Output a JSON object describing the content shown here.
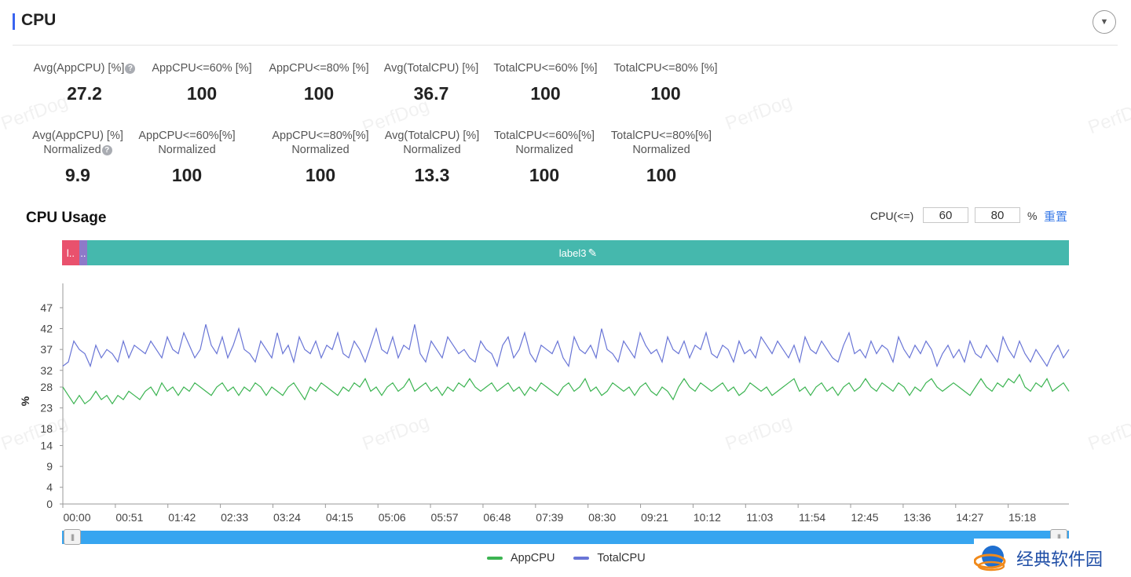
{
  "header": {
    "title": "CPU"
  },
  "stats_row1": [
    {
      "label": "Avg(AppCPU) [%]",
      "value": "27.2",
      "help": true
    },
    {
      "label": "AppCPU<=60% [%]",
      "value": "100"
    },
    {
      "label": "AppCPU<=80% [%]",
      "value": "100"
    },
    {
      "label": "Avg(TotalCPU) [%]",
      "value": "36.7"
    },
    {
      "label": "TotalCPU<=60% [%]",
      "value": "100"
    },
    {
      "label": "TotalCPU<=80% [%]",
      "value": "100"
    }
  ],
  "stats_row2": [
    {
      "label1": "Avg(AppCPU) [%]",
      "label2": "Normalized",
      "value": "9.9",
      "help": true
    },
    {
      "label1": "AppCPU<=60%[%]",
      "label2": "Normalized",
      "value": "100"
    },
    {
      "label1": "AppCPU<=80%[%]",
      "label2": "Normalized",
      "value": "100"
    },
    {
      "label1": "Avg(TotalCPU) [%]",
      "label2": "Normalized",
      "value": "13.3"
    },
    {
      "label1": "TotalCPU<=60%[%]",
      "label2": "Normalized",
      "value": "100"
    },
    {
      "label1": "TotalCPU<=80%[%]",
      "label2": "Normalized",
      "value": "100"
    }
  ],
  "usage": {
    "title": "CPU Usage",
    "threshold_label": "CPU(<=)",
    "threshold_low": "60",
    "threshold_high": "80",
    "unit": "%",
    "reset": "重置"
  },
  "labels": [
    {
      "text": "l..",
      "color": "#e9516d",
      "fraction": 0.017
    },
    {
      "text": "..",
      "color": "#8e79c9",
      "fraction": 0.008
    },
    {
      "text": "label3",
      "color": "#45b8ad",
      "fraction": 0.975
    }
  ],
  "watermark": "PerfDog",
  "brand": "经典软件园",
  "colors": {
    "accent": "#3a64f0",
    "app": "#3cb452",
    "total": "#6975d6",
    "slider": "#37a5f0"
  },
  "chart_data": {
    "type": "line",
    "ylabel": "%",
    "ylim": [
      0,
      50
    ],
    "yticks": [
      "0",
      "4",
      "9",
      "14",
      "18",
      "23",
      "28",
      "32",
      "37",
      "42",
      "47"
    ],
    "xticks": [
      "00:00",
      "00:51",
      "01:42",
      "02:33",
      "03:24",
      "04:15",
      "05:06",
      "05:57",
      "06:48",
      "07:39",
      "08:30",
      "09:21",
      "10:12",
      "11:03",
      "11:54",
      "12:45",
      "13:36",
      "14:27",
      "15:18"
    ],
    "x_interval_s": 51,
    "duration_s": 977,
    "legend_position": "bottom",
    "series": [
      {
        "name": "AppCPU",
        "color": "#3cb452",
        "values": [
          28,
          26,
          24,
          26,
          24,
          25,
          27,
          25,
          26,
          24,
          26,
          25,
          27,
          26,
          25,
          27,
          28,
          26,
          29,
          27,
          28,
          26,
          28,
          27,
          29,
          28,
          27,
          26,
          28,
          29,
          27,
          28,
          26,
          28,
          27,
          29,
          28,
          26,
          28,
          27,
          26,
          28,
          29,
          27,
          25,
          28,
          27,
          29,
          28,
          27,
          26,
          28,
          27,
          29,
          28,
          30,
          27,
          28,
          26,
          28,
          29,
          27,
          28,
          30,
          27,
          28,
          29,
          27,
          28,
          26,
          28,
          27,
          29,
          28,
          30,
          28,
          27,
          28,
          29,
          27,
          28,
          29,
          27,
          28,
          26,
          28,
          27,
          29,
          28,
          27,
          26,
          28,
          29,
          27,
          28,
          30,
          27,
          28,
          26,
          27,
          29,
          28,
          27,
          28,
          26,
          28,
          29,
          27,
          26,
          28,
          27,
          25,
          28,
          30,
          28,
          27,
          29,
          28,
          27,
          28,
          29,
          27,
          28,
          26,
          27,
          29,
          28,
          27,
          28,
          26,
          27,
          28,
          29,
          30,
          27,
          28,
          26,
          28,
          29,
          27,
          28,
          26,
          28,
          29,
          27,
          28,
          30,
          28,
          27,
          29,
          28,
          27,
          29,
          28,
          26,
          28,
          27,
          29,
          30,
          28,
          27,
          28,
          29,
          28,
          27,
          26,
          28,
          30,
          28,
          27,
          29,
          28,
          30,
          29,
          31,
          28,
          27,
          29,
          28,
          30,
          27,
          28,
          29,
          27
        ]
      },
      {
        "name": "TotalCPU",
        "color": "#6975d6",
        "values": [
          33,
          34,
          39,
          37,
          36,
          33,
          38,
          35,
          37,
          36,
          34,
          39,
          35,
          38,
          37,
          36,
          39,
          37,
          35,
          40,
          37,
          36,
          41,
          38,
          35,
          37,
          43,
          38,
          36,
          40,
          35,
          38,
          42,
          37,
          36,
          34,
          39,
          37,
          35,
          41,
          36,
          38,
          34,
          40,
          37,
          36,
          39,
          35,
          38,
          37,
          41,
          36,
          35,
          39,
          37,
          34,
          38,
          42,
          37,
          36,
          40,
          35,
          38,
          37,
          43,
          36,
          34,
          39,
          37,
          35,
          40,
          38,
          36,
          37,
          35,
          34,
          39,
          37,
          36,
          33,
          38,
          40,
          35,
          37,
          41,
          36,
          34,
          38,
          37,
          36,
          39,
          35,
          33,
          40,
          37,
          36,
          38,
          35,
          42,
          37,
          36,
          34,
          39,
          37,
          35,
          41,
          38,
          36,
          37,
          34,
          40,
          37,
          36,
          39,
          35,
          38,
          37,
          41,
          36,
          35,
          38,
          37,
          34,
          39,
          36,
          37,
          35,
          40,
          38,
          36,
          39,
          37,
          35,
          38,
          34,
          40,
          37,
          36,
          39,
          37,
          35,
          34,
          38,
          41,
          36,
          37,
          35,
          39,
          36,
          38,
          37,
          34,
          40,
          37,
          35,
          38,
          36,
          39,
          37,
          33,
          36,
          38,
          35,
          37,
          34,
          39,
          36,
          35,
          38,
          36,
          34,
          40,
          37,
          35,
          39,
          36,
          34,
          37,
          35,
          33,
          36,
          38,
          35,
          37
        ]
      }
    ]
  }
}
